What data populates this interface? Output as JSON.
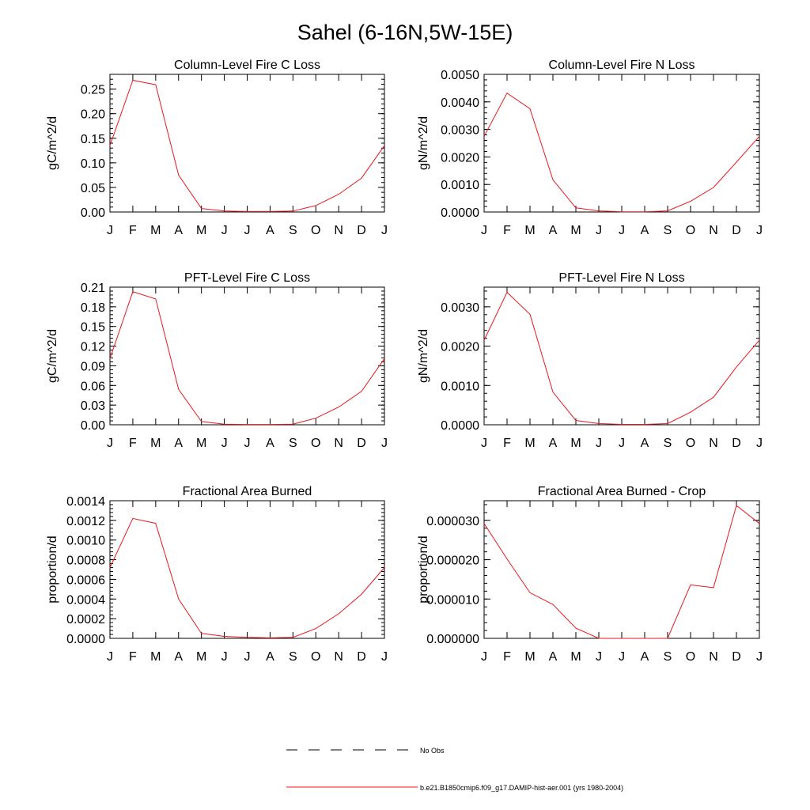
{
  "page": {
    "title": "Sahel (6-16N,5W-15E)"
  },
  "legend": {
    "entries": [
      {
        "label": "No Obs",
        "color": "#000000",
        "style": "dashed"
      },
      {
        "label": "b.e21.B1850cmip6.f09_g17.DAMIP-hist-aer.001 (yrs 1980-2004)",
        "color": "#e8191d",
        "style": "solid"
      }
    ]
  },
  "chart_data": [
    {
      "type": "line",
      "title": "Column-Level Fire C Loss",
      "ylabel": "gC/m^2/d",
      "xlabel": "",
      "categories": [
        "J",
        "F",
        "M",
        "A",
        "M",
        "J",
        "J",
        "A",
        "S",
        "O",
        "N",
        "D",
        "J"
      ],
      "ylim": [
        0,
        0.28
      ],
      "yticks": [
        "0.00",
        "0.05",
        "0.10",
        "0.15",
        "0.20",
        "0.25"
      ],
      "yticks_values": [
        0,
        0.05,
        0.1,
        0.15,
        0.2,
        0.25
      ],
      "series": [
        {
          "color": "#e8191d",
          "values": [
            0.135,
            0.268,
            0.259,
            0.075,
            0.007,
            0.002,
            0.001,
            0.001,
            0.002,
            0.013,
            0.036,
            0.069,
            0.135
          ]
        }
      ]
    },
    {
      "type": "line",
      "title": "Column-Level Fire N Loss",
      "ylabel": "gN/m^2/d",
      "xlabel": "",
      "categories": [
        "J",
        "F",
        "M",
        "A",
        "M",
        "J",
        "J",
        "A",
        "S",
        "O",
        "N",
        "D",
        "J"
      ],
      "ylim": [
        0,
        0.005
      ],
      "yticks": [
        "0.0000",
        "0.0010",
        "0.0020",
        "0.0030",
        "0.0040",
        "0.0050"
      ],
      "yticks_values": [
        0,
        0.001,
        0.002,
        0.003,
        0.004,
        0.005
      ],
      "series": [
        {
          "color": "#e8191d",
          "values": [
            0.00275,
            0.00432,
            0.00375,
            0.00117,
            0.00015,
            4e-05,
            1e-05,
            1e-05,
            4e-05,
            0.00039,
            0.00089,
            0.00181,
            0.00275
          ]
        }
      ]
    },
    {
      "type": "line",
      "title": "PFT-Level Fire C Loss",
      "ylabel": "gC/m^2/d",
      "xlabel": "",
      "categories": [
        "J",
        "F",
        "M",
        "A",
        "M",
        "J",
        "J",
        "A",
        "S",
        "O",
        "N",
        "D",
        "J"
      ],
      "ylim": [
        0,
        0.21
      ],
      "yticks": [
        "0.00",
        "0.03",
        "0.06",
        "0.09",
        "0.12",
        "0.15",
        "0.18",
        "0.21"
      ],
      "yticks_values": [
        0,
        0.03,
        0.06,
        0.09,
        0.12,
        0.15,
        0.18,
        0.21
      ],
      "series": [
        {
          "color": "#e8191d",
          "values": [
            0.101,
            0.203,
            0.192,
            0.054,
            0.005,
            0.001,
            0.0005,
            0.0005,
            0.001,
            0.01,
            0.027,
            0.051,
            0.101
          ]
        }
      ]
    },
    {
      "type": "line",
      "title": "PFT-Level Fire N Loss",
      "ylabel": "gN/m^2/d",
      "xlabel": "",
      "categories": [
        "J",
        "F",
        "M",
        "A",
        "M",
        "J",
        "J",
        "A",
        "S",
        "O",
        "N",
        "D",
        "J"
      ],
      "ylim": [
        0,
        0.0035
      ],
      "yticks": [
        "0.0000",
        "0.0010",
        "0.0020",
        "0.0030"
      ],
      "yticks_values": [
        0,
        0.001,
        0.002,
        0.003
      ],
      "series": [
        {
          "color": "#e8191d",
          "values": [
            0.00215,
            0.00337,
            0.00281,
            0.00083,
            0.00011,
            3e-05,
            1e-05,
            1e-05,
            3e-05,
            0.00032,
            0.0007,
            0.00147,
            0.00215
          ]
        }
      ]
    },
    {
      "type": "line",
      "title": "Fractional Area Burned",
      "ylabel": "proportion/d",
      "xlabel": "",
      "categories": [
        "J",
        "F",
        "M",
        "A",
        "M",
        "J",
        "J",
        "A",
        "S",
        "O",
        "N",
        "D",
        "J"
      ],
      "ylim": [
        0,
        0.0014
      ],
      "yticks": [
        "0.0000",
        "0.0002",
        "0.0004",
        "0.0006",
        "0.0008",
        "0.0010",
        "0.0012",
        "0.0014"
      ],
      "yticks_values": [
        0,
        0.0002,
        0.0004,
        0.0006,
        0.0008,
        0.001,
        0.0012,
        0.0014
      ],
      "series": [
        {
          "color": "#e8191d",
          "values": [
            0.00072,
            0.00122,
            0.00117,
            0.0004,
            5e-05,
            2e-05,
            1e-05,
            5e-06,
            1e-05,
            0.0001,
            0.00025,
            0.00045,
            0.00072
          ]
        }
      ]
    },
    {
      "type": "line",
      "title": "Fractional Area Burned - Crop",
      "ylabel": "proportion/d",
      "xlabel": "",
      "categories": [
        "J",
        "F",
        "M",
        "A",
        "M",
        "J",
        "J",
        "A",
        "S",
        "O",
        "N",
        "D",
        "J"
      ],
      "ylim": [
        0,
        3.5e-05
      ],
      "yticks": [
        "0.000000",
        "0.000010",
        "0.000020",
        "0.000030"
      ],
      "yticks_values": [
        0,
        1e-05,
        2e-05,
        3e-05
      ],
      "series": [
        {
          "color": "#e8191d",
          "values": [
            2.92e-05,
            2.02e-05,
            1.16e-05,
            8.6e-06,
            2.6e-06,
            0,
            0,
            0,
            0,
            1.36e-05,
            1.29e-05,
            3.38e-05,
            2.92e-05
          ]
        }
      ]
    }
  ]
}
